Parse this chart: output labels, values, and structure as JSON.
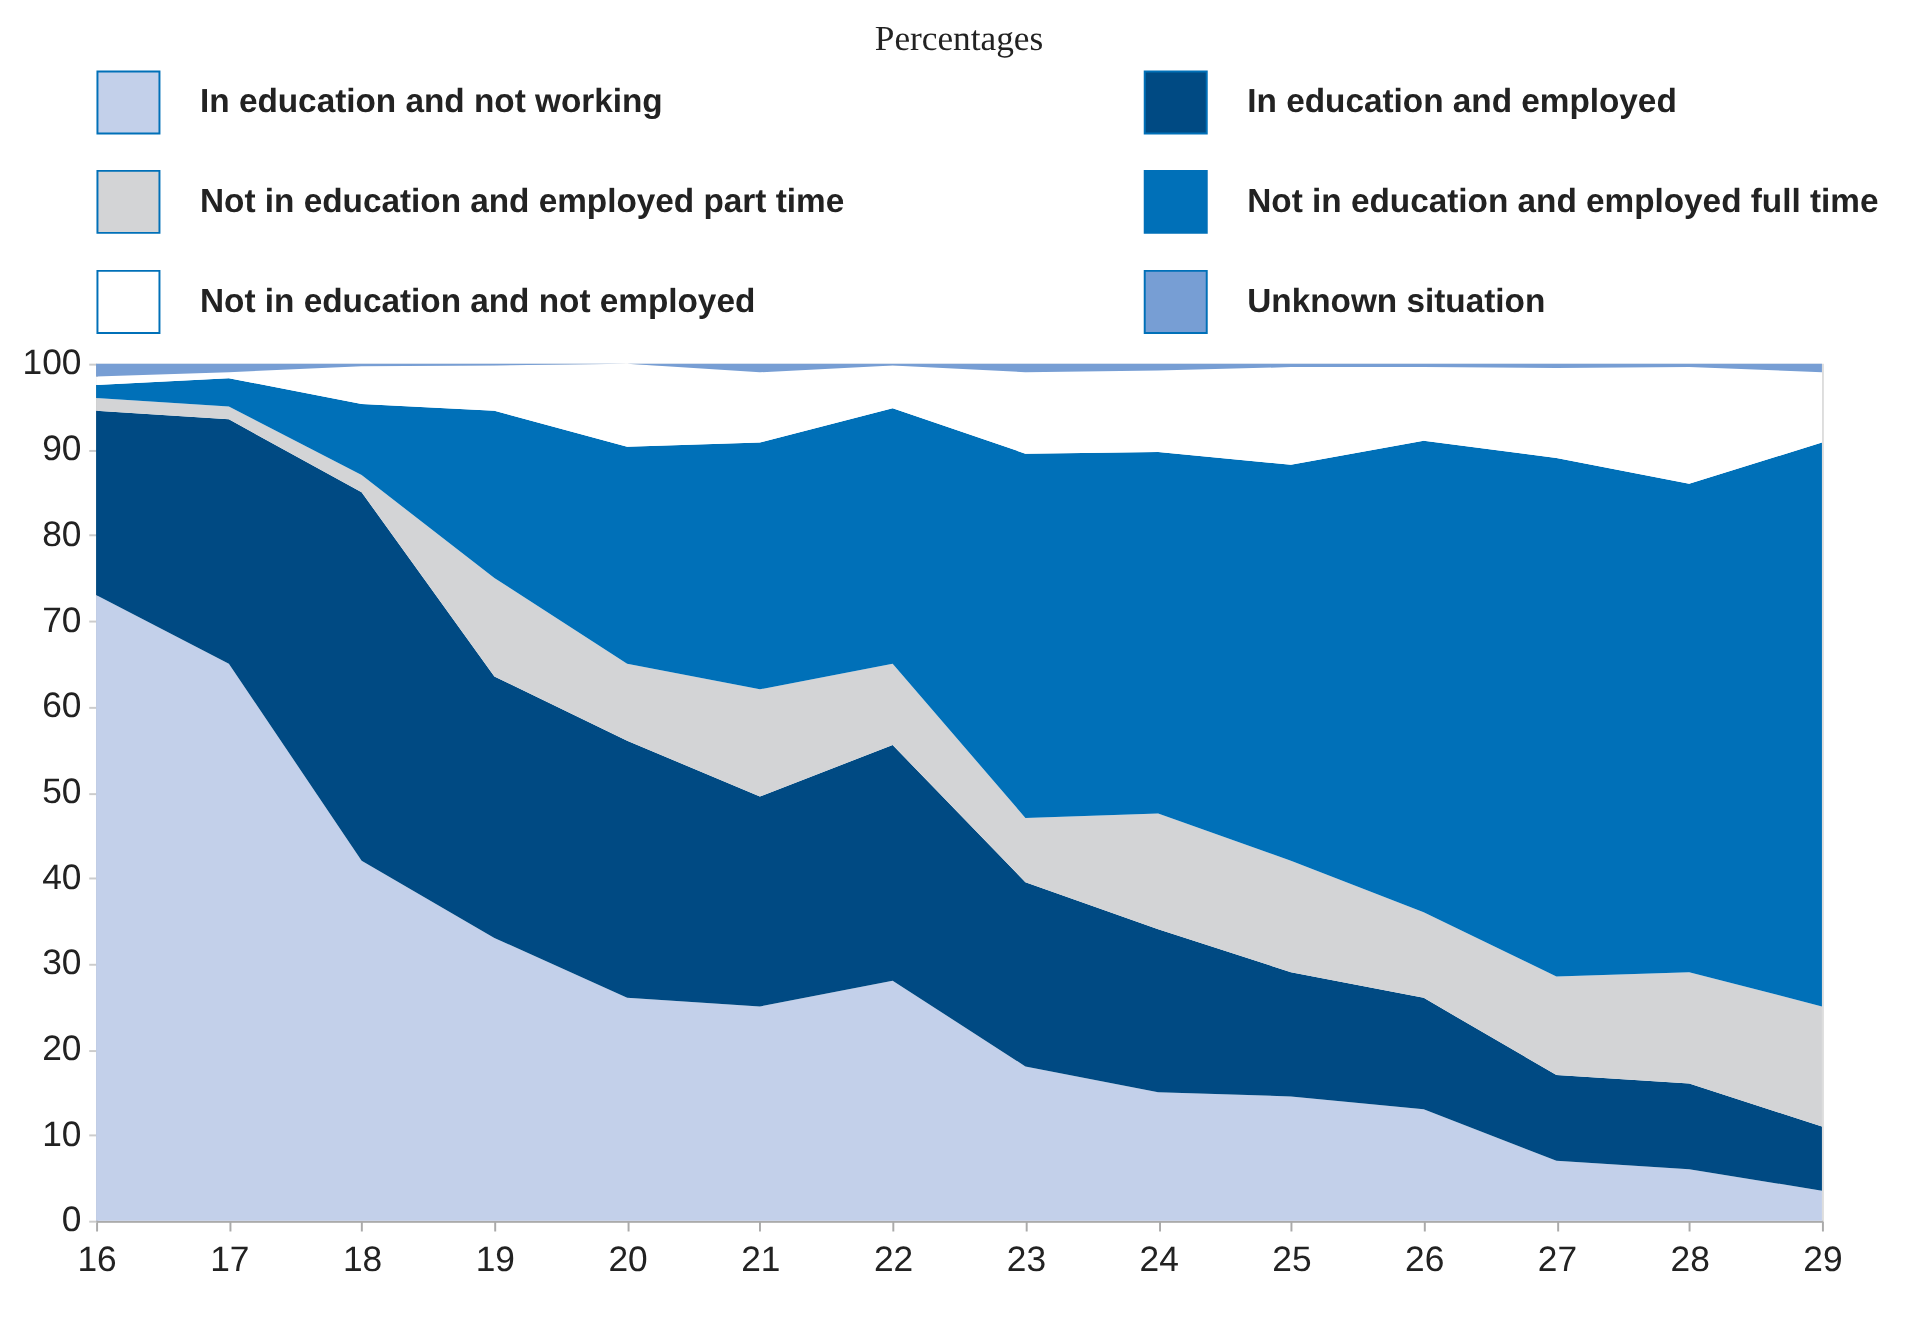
{
  "chart_data": {
    "type": "area",
    "stacked": true,
    "title": "Percentages",
    "x": [
      16,
      17,
      18,
      19,
      20,
      21,
      22,
      23,
      24,
      25,
      26,
      27,
      28,
      29
    ],
    "xlim": [
      16,
      29
    ],
    "xticks": [
      16,
      17,
      18,
      19,
      20,
      21,
      22,
      23,
      24,
      25,
      26,
      27,
      28,
      29
    ],
    "ylim": [
      0,
      100
    ],
    "yticks": [
      0,
      10,
      20,
      30,
      40,
      50,
      60,
      70,
      80,
      90,
      100
    ],
    "grid": false,
    "legend": "top",
    "series": [
      {
        "name": "In education and not working",
        "color": "#c3d0ea",
        "values": [
          73,
          65,
          42,
          33,
          26,
          25,
          28,
          18,
          15,
          14.5,
          13,
          7,
          6,
          3.5
        ]
      },
      {
        "name": "In education and employed",
        "color": "#004a83",
        "values": [
          21.5,
          28.5,
          43,
          30.5,
          30,
          24.5,
          27.5,
          21.5,
          19,
          14.5,
          13,
          10,
          10,
          7.5
        ]
      },
      {
        "name": "Not in education and employed part time",
        "color": "#d3d4d6",
        "values": [
          1.5,
          1.5,
          2,
          11.5,
          9,
          12.5,
          9.5,
          7.5,
          13.5,
          13,
          10,
          11.5,
          13,
          14
        ]
      },
      {
        "name": "Not in education and employed full time",
        "color": "#0070b8",
        "values": [
          1.5,
          3.3,
          8.3,
          19.5,
          25.3,
          28.8,
          29.8,
          42.5,
          42.2,
          46.2,
          55,
          60.5,
          57,
          65.8
        ]
      },
      {
        "name": "Not in education and not employed",
        "color": "#ffffff",
        "values": [
          1,
          0.7,
          4.4,
          5.3,
          9.7,
          8.2,
          5,
          9.5,
          9.5,
          11.4,
          8.6,
          10.5,
          13.6,
          8.2
        ]
      },
      {
        "name": "Unknown situation",
        "color": "#779ed4",
        "values": [
          1.5,
          1,
          0.3,
          0.2,
          0,
          1,
          0.2,
          1,
          0.8,
          0.4,
          0.4,
          0.5,
          0.4,
          1
        ]
      }
    ]
  }
}
